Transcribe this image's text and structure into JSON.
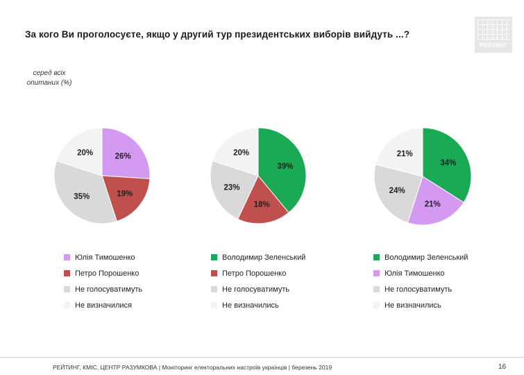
{
  "header": {
    "title": "За кого Ви проголосуєте, якщо у другий тур президентських виборів вийдуть ...?",
    "logo_text": "РЕЙТИНГ"
  },
  "note": {
    "line1": "серед всіх",
    "line2": "опитаних (%)"
  },
  "footer": {
    "source": "РЕЙТИНГ, КМІС, ЦЕНТР РАЗУМКОВА  | Моніторинг електоральних настроїв українців | березень 2019",
    "page": "16"
  },
  "chart_data": [
    {
      "type": "pie",
      "title": "",
      "slices": [
        {
          "label": "Юлія Тимошенко",
          "value": 26,
          "display": "26%",
          "color": "#d49af2"
        },
        {
          "label": "Петро Порошенко",
          "value": 19,
          "display": "19%",
          "color": "#c0504d"
        },
        {
          "label": "Не голосуватимуть",
          "value": 35,
          "display": "35%",
          "color": "#d9d9d9"
        },
        {
          "label": "Не визначилися",
          "value": 20,
          "display": "20%",
          "color": "#f3f3f3"
        }
      ]
    },
    {
      "type": "pie",
      "title": "",
      "slices": [
        {
          "label": "Володимир Зеленський",
          "value": 39,
          "display": "39%",
          "color": "#1aaa55"
        },
        {
          "label": "Петро Порошенко",
          "value": 18,
          "display": "18%",
          "color": "#c0504d"
        },
        {
          "label": "Не голосуватимуть",
          "value": 23,
          "display": "23%",
          "color": "#d9d9d9"
        },
        {
          "label": "Не визначились",
          "value": 20,
          "display": "20%",
          "color": "#f3f3f3"
        }
      ]
    },
    {
      "type": "pie",
      "title": "",
      "slices": [
        {
          "label": "Володимир Зеленський",
          "value": 34,
          "display": "34%",
          "color": "#1aaa55"
        },
        {
          "label": "Юлія Тимошенко",
          "value": 21,
          "display": "21%",
          "color": "#d49af2"
        },
        {
          "label": "Не голосуватимуть",
          "value": 24,
          "display": "24%",
          "color": "#d9d9d9"
        },
        {
          "label": "Не визначились",
          "value": 21,
          "display": "21%",
          "color": "#f3f3f3"
        }
      ]
    }
  ]
}
